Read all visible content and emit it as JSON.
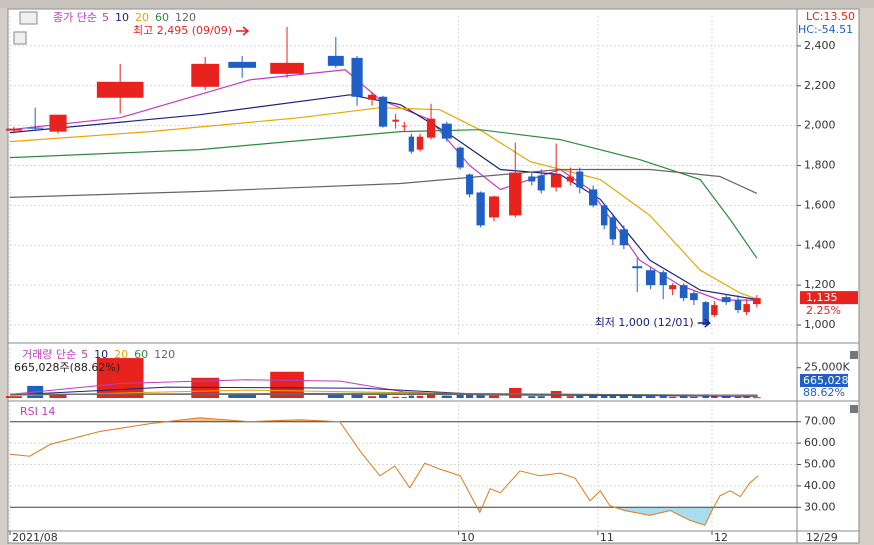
{
  "chart_data": [
    {
      "type": "candlestick",
      "legend_label": "종가 단순",
      "x": [
        0.5,
        3.2,
        6.1,
        14.0,
        24.8,
        29.5,
        35.2,
        41.4,
        44.1,
        46.0,
        47.4,
        49.0,
        50.1,
        51.0,
        52.1,
        53.5,
        55.5,
        57.2,
        58.4,
        59.8,
        61.5,
        64.2,
        66.3,
        67.5,
        69.4,
        71.2,
        72.4,
        74.1,
        75.5,
        76.6,
        78.0,
        79.7,
        81.4,
        83.0,
        84.2,
        85.6,
        86.9,
        88.4,
        89.5,
        91.0,
        92.5,
        93.6,
        94.9
      ],
      "open": [
        1975,
        1990,
        1970,
        2140,
        2195,
        2320,
        2260,
        2350,
        2340,
        2130,
        2145,
        2020,
        1995,
        1945,
        1880,
        1940,
        2010,
        1890,
        1755,
        1665,
        1540,
        1550,
        1745,
        1750,
        1690,
        1720,
        1770,
        1680,
        1600,
        1540,
        1480,
        1295,
        1275,
        1265,
        1180,
        1200,
        1160,
        1115,
        1050,
        1140,
        1125,
        1065,
        1105
      ],
      "high": [
        1995,
        2090,
        2055,
        2310,
        2345,
        2350,
        2495,
        2445,
        2350,
        2170,
        2150,
        2060,
        2020,
        1960,
        1960,
        2110,
        2020,
        1895,
        1760,
        1670,
        1650,
        1915,
        1770,
        1780,
        1910,
        1790,
        1790,
        1700,
        1610,
        1560,
        1500,
        1335,
        1290,
        1275,
        1210,
        1210,
        1170,
        1120,
        1120,
        1155,
        1150,
        1130,
        1150
      ],
      "low": [
        1960,
        1975,
        1960,
        2060,
        2180,
        2240,
        2240,
        2290,
        2100,
        2100,
        1990,
        1985,
        1970,
        1860,
        1870,
        1930,
        1920,
        1780,
        1640,
        1490,
        1520,
        1540,
        1700,
        1660,
        1670,
        1700,
        1660,
        1590,
        1480,
        1400,
        1380,
        1165,
        1180,
        1130,
        1150,
        1120,
        1100,
        1000,
        1040,
        1100,
        1060,
        1050,
        1090
      ],
      "close": [
        1985,
        1985,
        2055,
        2220,
        2310,
        2290,
        2315,
        2300,
        2145,
        2155,
        1995,
        2030,
        2000,
        1870,
        1945,
        2035,
        1935,
        1790,
        1655,
        1500,
        1645,
        1765,
        1720,
        1675,
        1755,
        1745,
        1690,
        1600,
        1500,
        1430,
        1400,
        1285,
        1200,
        1200,
        1200,
        1135,
        1125,
        1000,
        1100,
        1115,
        1075,
        1105,
        1135
      ],
      "xlim": [
        0,
        100
      ],
      "ylim": [
        950,
        2530
      ],
      "yticks": [
        {
          "value": 1000,
          "label": "1,000"
        },
        {
          "value": 1200,
          "label": "1,200"
        },
        {
          "value": 1400,
          "label": "1,400"
        },
        {
          "value": 1600,
          "label": "1,600"
        },
        {
          "value": 1800,
          "label": "1,800"
        },
        {
          "value": 2000,
          "label": "2,000"
        },
        {
          "value": 2200,
          "label": "2,200"
        },
        {
          "value": 2400,
          "label": "2,400"
        }
      ],
      "grid": true,
      "up_color": "#e8231e",
      "down_color": "#1f5fc6",
      "series": [
        {
          "name": "5",
          "color": "#c23bc2",
          "x": [
            0,
            14,
            30.5,
            42.6,
            47,
            53.4,
            58.4,
            62.3,
            69.9,
            73.7,
            80,
            85.1,
            90.2,
            95.3
          ],
          "values": [
            1980,
            2040,
            2230,
            2280,
            2130,
            2030,
            1800,
            1680,
            1780,
            1680,
            1325,
            1200,
            1125,
            1125
          ]
        },
        {
          "name": "10",
          "color": "#1a237e",
          "x": [
            0,
            24.1,
            43.2,
            49.6,
            55.9,
            62.3,
            69.9,
            75,
            81.3,
            87.7,
            95.3
          ],
          "values": [
            1965,
            2055,
            2155,
            2105,
            1955,
            1780,
            1755,
            1630,
            1325,
            1175,
            1125
          ]
        },
        {
          "name": "20",
          "color": "#e8a600",
          "x": [
            0,
            17.8,
            36.8,
            47,
            54.6,
            59.7,
            66.1,
            75,
            81.3,
            87.7,
            92.8,
            95.3
          ],
          "values": [
            1920,
            1970,
            2040,
            2090,
            2080,
            1980,
            1820,
            1730,
            1550,
            1275,
            1160,
            1125
          ]
        },
        {
          "name": "60",
          "color": "#2e8b3e",
          "x": [
            0,
            24.1,
            49.6,
            59.7,
            69.9,
            80,
            87.7,
            91.5,
            94.9
          ],
          "values": [
            1840,
            1880,
            1970,
            1980,
            1930,
            1830,
            1730,
            1530,
            1335
          ]
        },
        {
          "name": "120",
          "color": "#666666",
          "x": [
            0,
            24.1,
            49.6,
            69.9,
            81.3,
            90.2,
            94.9
          ],
          "values": [
            1640,
            1670,
            1710,
            1780,
            1780,
            1745,
            1660
          ]
        }
      ],
      "annotations": [
        {
          "text": "최고 2,495 (09/09)",
          "x": 35.2,
          "y": 2495,
          "color": "#e8231e"
        },
        {
          "text": "최저 1,000 (12/01)",
          "x": 88.4,
          "y": 1000,
          "color": "#1a237e"
        }
      ],
      "last": {
        "value": 1135,
        "label": "1,135"
      },
      "change": "2.25%",
      "lc": "LC:13.50",
      "hc": "HC:-54.51"
    },
    {
      "type": "bar",
      "legend_label": "거래량 단순",
      "x": [
        0.5,
        3.2,
        6.1,
        14.0,
        24.8,
        29.5,
        35.2,
        41.4,
        44.1,
        46.0,
        47.4,
        49.0,
        50.1,
        51.0,
        52.1,
        53.5,
        55.5,
        57.2,
        58.4,
        59.8,
        61.5,
        64.2,
        66.3,
        67.5,
        69.4,
        71.2,
        72.4,
        74.1,
        75.5,
        76.6,
        78.0,
        79.7,
        81.4,
        83.0,
        84.2,
        85.6,
        86.9,
        88.4,
        89.5,
        91.0,
        92.5,
        93.6,
        94.9
      ],
      "values": [
        1500,
        10000,
        3000,
        33000,
        16700,
        2500,
        21700,
        3000,
        3500,
        1500,
        2500,
        1000,
        800,
        2000,
        1800,
        2500,
        2000,
        2500,
        3000,
        4000,
        2000,
        8300,
        1500,
        1500,
        5800,
        1500,
        2000,
        2000,
        3000,
        2500,
        2500,
        2000,
        2500,
        2000,
        1000,
        1500,
        1000,
        3000,
        1500,
        1200,
        1000,
        1200,
        665.028
      ],
      "xlim": [
        0,
        100
      ],
      "ylim": [
        0,
        38000
      ],
      "yticks": [
        {
          "value": 25000,
          "label": "25,000K"
        }
      ],
      "series": [
        {
          "name": "5",
          "color": "#c23bc2",
          "x": [
            0,
            14,
            30,
            42,
            50,
            60,
            95
          ],
          "values": [
            3000,
            12000,
            15000,
            14000,
            5000,
            2500,
            1500
          ]
        },
        {
          "name": "10",
          "color": "#1a237e",
          "x": [
            0,
            20,
            45,
            60,
            95
          ],
          "values": [
            2500,
            9000,
            8000,
            3000,
            1500
          ]
        },
        {
          "name": "20",
          "color": "#e8a600",
          "x": [
            0,
            30,
            55,
            95
          ],
          "values": [
            2000,
            6500,
            4000,
            1800
          ]
        },
        {
          "name": "60",
          "color": "#2e8b3e",
          "x": [
            0,
            50,
            95
          ],
          "values": [
            3000,
            4000,
            2200
          ]
        },
        {
          "name": "120",
          "color": "#666666",
          "x": [
            0,
            95
          ],
          "values": [
            3000,
            2800
          ]
        }
      ],
      "header": "665,028주(88.62%)",
      "last": {
        "value": 665.028,
        "label": "665,028"
      },
      "ratio": "88.62%"
    },
    {
      "type": "line",
      "title": "RSI 14",
      "x": [
        0,
        2.5,
        5.1,
        11.4,
        17.8,
        24.1,
        30.5,
        36.8,
        41.9,
        44.5,
        47,
        48.9,
        50.8,
        52.7,
        54.6,
        57.2,
        59.7,
        61,
        62.3,
        64.8,
        67.3,
        69.9,
        71.8,
        73.7,
        75,
        76.2,
        78.1,
        81.3,
        83.9,
        86.4,
        88.3,
        89.2,
        90.2,
        91.5,
        92.8,
        94,
        95.1
      ],
      "values": [
        54.8,
        53.9,
        59.4,
        65.4,
        69.1,
        71.8,
        70,
        70.9,
        70,
        56.2,
        44.7,
        49.3,
        39.1,
        50.6,
        47.9,
        44.7,
        27.6,
        38.7,
        36.8,
        47,
        44.7,
        46,
        43.7,
        33.1,
        37.7,
        30.8,
        28.5,
        26.2,
        28.5,
        23.9,
        21.6,
        28.5,
        35.4,
        37.7,
        35,
        41.4,
        44.7
      ],
      "xlim": [
        0,
        100
      ],
      "ylim": [
        19.4,
        77.8
      ],
      "yticks": [
        {
          "value": 30,
          "label": "30.00"
        },
        {
          "value": 40,
          "label": "40.00"
        },
        {
          "value": 50,
          "label": "50.00"
        },
        {
          "value": 60,
          "label": "60.00"
        },
        {
          "value": 70,
          "label": "70.00"
        }
      ],
      "xticks": [
        {
          "value": 0,
          "label": "2021/08"
        },
        {
          "value": 57,
          "label": "10"
        },
        {
          "value": 74.7,
          "label": "11"
        },
        {
          "value": 89.2,
          "label": "12"
        }
      ],
      "end_label": "12/29",
      "color": "#e07b1a",
      "upper": 70,
      "lower": 30
    }
  ]
}
